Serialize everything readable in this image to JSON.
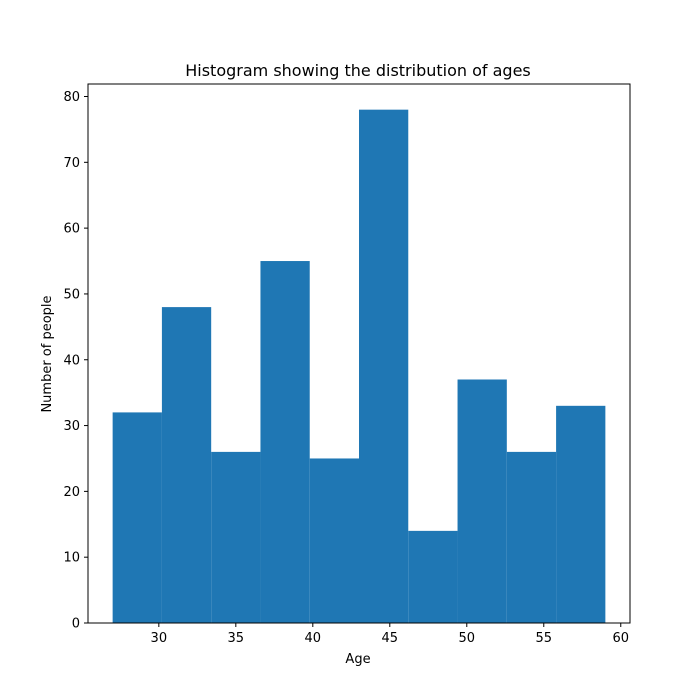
{
  "chart_data": {
    "type": "bar",
    "title": "Histogram showing the distribution of ages",
    "xlabel": "Age",
    "ylabel": "Number of people",
    "xlim": [
      25.4,
      60.6
    ],
    "ylim": [
      0,
      81.9
    ],
    "bar_color": "#1f77b4",
    "bins": [
      {
        "start": 27.0,
        "end": 30.2,
        "value": 32
      },
      {
        "start": 30.2,
        "end": 33.4,
        "value": 48
      },
      {
        "start": 33.4,
        "end": 36.6,
        "value": 26
      },
      {
        "start": 36.6,
        "end": 39.8,
        "value": 55
      },
      {
        "start": 39.8,
        "end": 43.0,
        "value": 25
      },
      {
        "start": 43.0,
        "end": 46.2,
        "value": 78
      },
      {
        "start": 46.2,
        "end": 49.4,
        "value": 14
      },
      {
        "start": 49.4,
        "end": 52.6,
        "value": 37
      },
      {
        "start": 52.6,
        "end": 55.8,
        "value": 26
      },
      {
        "start": 55.8,
        "end": 59.0,
        "value": 33
      }
    ],
    "xticks": [
      30,
      35,
      40,
      45,
      50,
      55,
      60
    ],
    "xtick_labels": [
      "30",
      "35",
      "40",
      "45",
      "50",
      "55",
      "60"
    ],
    "yticks": [
      0,
      10,
      20,
      30,
      40,
      50,
      60,
      70,
      80
    ],
    "ytick_labels": [
      "0",
      "10",
      "20",
      "30",
      "40",
      "50",
      "60",
      "70",
      "80"
    ]
  }
}
